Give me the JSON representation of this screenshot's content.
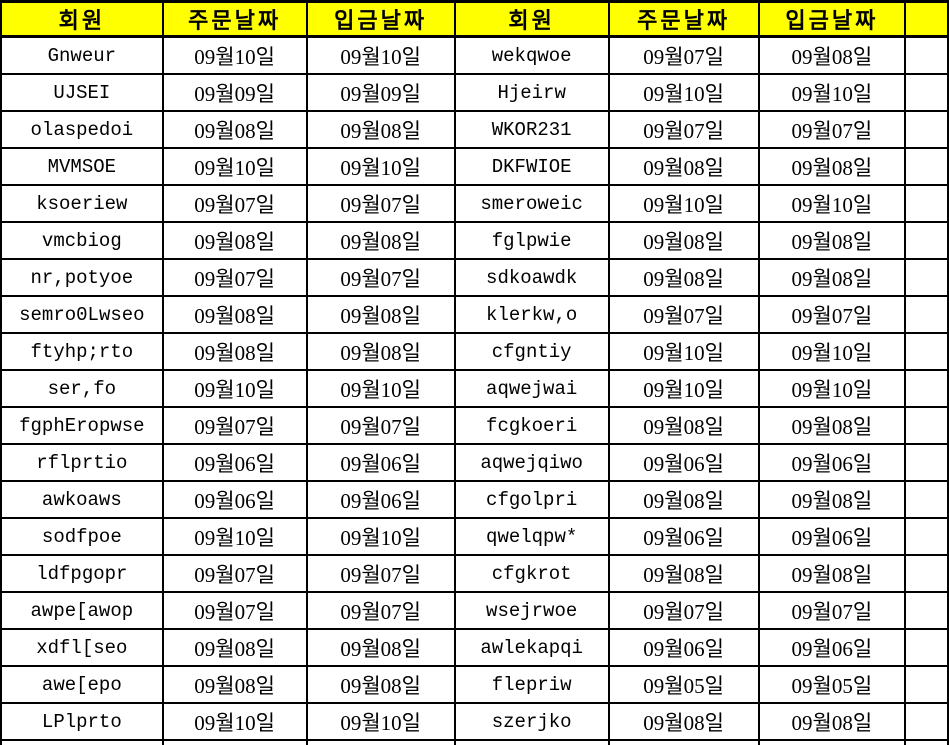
{
  "columns": [
    "회원",
    "주문날짜",
    "입금날짜",
    "회원",
    "주문날짜",
    "입금날짜"
  ],
  "rows": [
    [
      "Gnweur",
      "09월10일",
      "09월10일",
      "wekqwoe",
      "09월07일",
      "09월08일"
    ],
    [
      "UJSEI",
      "09월09일",
      "09월09일",
      "Hjeirw",
      "09월10일",
      "09월10일"
    ],
    [
      "olaspedoi",
      "09월08일",
      "09월08일",
      "WKOR231",
      "09월07일",
      "09월07일"
    ],
    [
      "MVMSOE",
      "09월10일",
      "09월10일",
      "DKFWIOE",
      "09월08일",
      "09월08일"
    ],
    [
      "ksoeriew",
      "09월07일",
      "09월07일",
      "smeroweic",
      "09월10일",
      "09월10일"
    ],
    [
      "vmcbiog",
      "09월08일",
      "09월08일",
      "fglpwie",
      "09월08일",
      "09월08일"
    ],
    [
      "nr,potyoe",
      "09월07일",
      "09월07일",
      "sdkoawdk",
      "09월08일",
      "09월08일"
    ],
    [
      "semro0Lwseo",
      "09월08일",
      "09월08일",
      "klerkw,o",
      "09월07일",
      "09월07일"
    ],
    [
      "ftyhp;rto",
      "09월08일",
      "09월08일",
      "cfgntiy",
      "09월10일",
      "09월10일"
    ],
    [
      "ser,fo",
      "09월10일",
      "09월10일",
      "aqwejwai",
      "09월10일",
      "09월10일"
    ],
    [
      "fgphEropwse",
      "09월07일",
      "09월07일",
      "fcgkoeri",
      "09월08일",
      "09월08일"
    ],
    [
      "rflprtio",
      "09월06일",
      "09월06일",
      "aqwejqiwo",
      "09월06일",
      "09월06일"
    ],
    [
      "awkoaws",
      "09월06일",
      "09월06일",
      "cfgolpri",
      "09월08일",
      "09월08일"
    ],
    [
      "sodfpoe",
      "09월10일",
      "09월10일",
      "qwelqpw*",
      "09월06일",
      "09월06일"
    ],
    [
      "ldfpgopr",
      "09월07일",
      "09월07일",
      "cfgkrot",
      "09월08일",
      "09월08일"
    ],
    [
      "awpe[awop",
      "09월07일",
      "09월07일",
      "wsejrwoe",
      "09월07일",
      "09월07일"
    ],
    [
      "xdfl[seo",
      "09월08일",
      "09월08일",
      "awlekapqi",
      "09월06일",
      "09월06일"
    ],
    [
      "awe[epo",
      "09월08일",
      "09월08일",
      "flepriw",
      "09월05일",
      "09월05일"
    ],
    [
      "LPlprto",
      "09월10일",
      "09월10일",
      "szerjko",
      "09월08일",
      "09월08일"
    ]
  ],
  "colors": {
    "header_bg": "#FFFF00",
    "border": "#000000",
    "text": "#000000",
    "cell_bg": "#FFFFFF"
  }
}
